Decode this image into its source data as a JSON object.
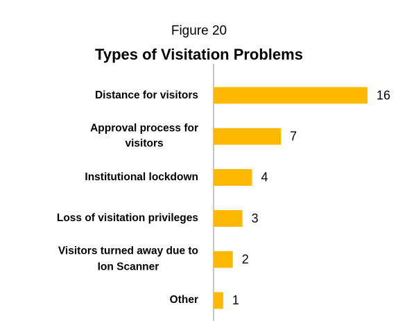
{
  "chart_data": {
    "type": "bar",
    "orientation": "horizontal",
    "subtitle": "Figure 20",
    "title": "Types of Visitation Problems",
    "categories": [
      "Distance for visitors",
      "Approval process for\nvisitors",
      "Institutional lockdown",
      "Loss of visitation privileges",
      "Visitors turned away due to\nIon Scanner",
      "Other"
    ],
    "values": [
      16,
      7,
      4,
      3,
      2,
      1
    ],
    "color": "#ffb800"
  }
}
